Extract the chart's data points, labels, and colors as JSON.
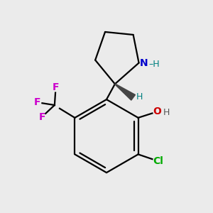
{
  "background_color": "#ebebeb",
  "bond_color": "#000000",
  "bond_width": 1.6,
  "atoms": {
    "N": {
      "color": "#0000cc",
      "fontsize": 10,
      "weight": "bold"
    },
    "O": {
      "color": "#cc0000",
      "fontsize": 10,
      "weight": "bold"
    },
    "F": {
      "color": "#cc00cc",
      "fontsize": 10,
      "weight": "bold"
    },
    "Cl": {
      "color": "#00aa00",
      "fontsize": 10,
      "weight": "bold"
    },
    "H_teal": {
      "color": "#008080",
      "fontsize": 9
    },
    "H_gray": {
      "color": "#555555",
      "fontsize": 9
    }
  },
  "figsize": [
    3.0,
    3.0
  ],
  "dpi": 100,
  "xlim": [
    1.5,
    8.5
  ],
  "ylim": [
    0.5,
    8.0
  ]
}
